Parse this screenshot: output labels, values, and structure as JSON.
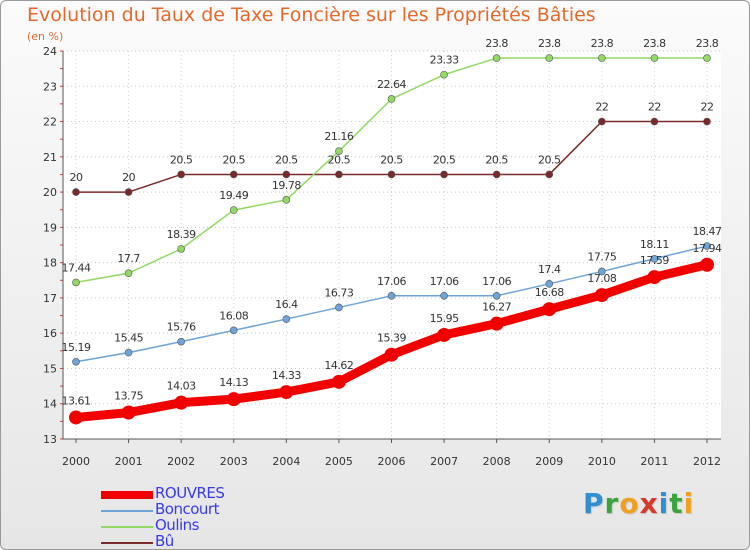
{
  "header": {
    "title": "Evolution du Taux de Taxe Foncière sur les Propriétés Bâties",
    "subtitle": "(en %)"
  },
  "logo": {
    "text": [
      "P",
      "r",
      "o",
      "x",
      "i",
      "t",
      "i"
    ],
    "colors": [
      "#2f8fd1",
      "#3aa43a",
      "#f0a020",
      "#d63a2a",
      "#2f8fd1",
      "#3aa43a",
      "#f0a020"
    ]
  },
  "chart_data": {
    "type": "line",
    "title": "Evolution du Taux de Taxe Foncière sur les Propriétés Bâties",
    "ylabel": "(en %)",
    "xlabel": "",
    "x": [
      "2000",
      "2001",
      "2002",
      "2003",
      "2004",
      "2005",
      "2006",
      "2007",
      "2008",
      "2009",
      "2010",
      "2011",
      "2012"
    ],
    "ylim": [
      13,
      24
    ],
    "yticks": [
      "13",
      "14",
      "15",
      "16",
      "17",
      "18",
      "19",
      "20",
      "21",
      "22",
      "23",
      "24"
    ],
    "legend_position": "bottom-left",
    "series": [
      {
        "name": "ROUVRES",
        "color": "#f20000",
        "thick": true,
        "values": [
          13.61,
          13.75,
          14.03,
          14.13,
          14.33,
          14.62,
          15.39,
          15.95,
          16.27,
          16.68,
          17.08,
          17.59,
          17.94
        ],
        "labels": [
          "13.61",
          "13.75",
          "14.03",
          "14.13",
          "14.33",
          "14.62",
          "15.39",
          "15.95",
          "16.27",
          "16.68",
          "17.08",
          "17.59",
          "17.94"
        ]
      },
      {
        "name": "Boncourt",
        "color": "#6fa4d8",
        "thick": false,
        "values": [
          15.19,
          15.45,
          15.76,
          16.08,
          16.4,
          16.73,
          17.06,
          17.06,
          17.06,
          17.4,
          17.75,
          18.11,
          18.47
        ],
        "labels": [
          "15.19",
          "15.45",
          "15.76",
          "16.08",
          "16.4",
          "16.73",
          "17.06",
          "17.06",
          "17.06",
          "17.4",
          "17.75",
          "18.11",
          "18.47"
        ]
      },
      {
        "name": "Oulins",
        "color": "#92d966",
        "thick": false,
        "values": [
          17.44,
          17.7,
          18.39,
          19.49,
          19.78,
          21.16,
          22.64,
          23.33,
          23.8,
          23.8,
          23.8,
          23.8,
          23.8
        ],
        "labels": [
          "17.44",
          "17.7",
          "18.39",
          "19.49",
          "19.78",
          "21.16",
          "22.64",
          "23.33",
          "23.8",
          "23.8",
          "23.8",
          "23.8",
          "23.8"
        ]
      },
      {
        "name": "Bû",
        "color": "#7a2a2a",
        "thick": false,
        "values": [
          20,
          20,
          20.5,
          20.5,
          20.5,
          20.5,
          20.5,
          20.5,
          20.5,
          20.5,
          22,
          22,
          22
        ],
        "labels": [
          "20",
          "20",
          "20.5",
          "20.5",
          "20.5",
          "20.5",
          "20.5",
          "20.5",
          "20.5",
          "20.5",
          "22",
          "22",
          "22"
        ]
      }
    ]
  }
}
